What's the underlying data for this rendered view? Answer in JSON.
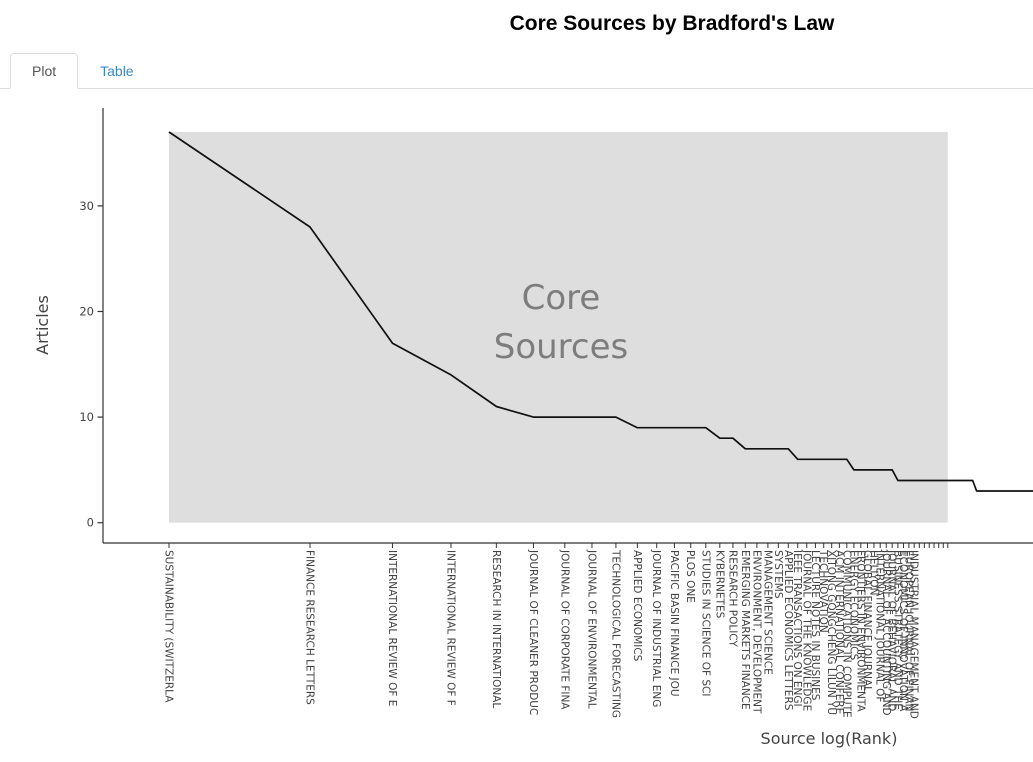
{
  "page": {
    "title": "Core Sources by Bradford's Law"
  },
  "tabs": [
    {
      "label": "Plot",
      "active": true
    },
    {
      "label": "Table",
      "active": false
    }
  ],
  "colors": {
    "accent_link": "#3a87c8",
    "tab_border": "#dddddd",
    "line": "#111111",
    "core_fill": "#dedede",
    "core_label": "#7d7d7d",
    "axis_text": "#444444",
    "axis_line": "#333333"
  },
  "chart_data": {
    "type": "line",
    "title": "Core Sources by Bradford's Law",
    "xlabel": "Source log(Rank)",
    "ylabel": "Articles",
    "x_scale": "log",
    "ylim": [
      0,
      39
    ],
    "yticks": [
      0,
      10,
      20,
      30
    ],
    "grid": false,
    "legend": false,
    "annotation": {
      "text_lines": [
        "Core",
        "Sources"
      ]
    },
    "core_zone": {
      "rank_start": 1,
      "rank_end": 46
    },
    "n_ranks_plotted": 70,
    "sources": [
      {
        "label": "SUSTAINABILITY (SWITZERLA",
        "articles": 37
      },
      {
        "label": "FINANCE RESEARCH LETTERS",
        "articles": 28
      },
      {
        "label": "INTERNATIONAL REVIEW OF E",
        "articles": 17
      },
      {
        "label": "INTERNATIONAL REVIEW OF F",
        "articles": 14
      },
      {
        "label": "RESEARCH IN INTERNATIONAL",
        "articles": 11
      },
      {
        "label": "JOURNAL OF CLEANER PRODUC",
        "articles": 10
      },
      {
        "label": "JOURNAL OF CORPORATE FINA",
        "articles": 10
      },
      {
        "label": "JOURNAL OF ENVIRONMENTAL",
        "articles": 10
      },
      {
        "label": "TECHNOLOGICAL FORECASTING",
        "articles": 10
      },
      {
        "label": "APPLIED ECONOMICS",
        "articles": 9
      },
      {
        "label": "JOURNAL OF INDUSTRIAL ENG",
        "articles": 9
      },
      {
        "label": "PACIFIC BASIN FINANCE JOU",
        "articles": 9
      },
      {
        "label": "PLOS ONE",
        "articles": 9
      },
      {
        "label": "STUDIES IN SCIENCE OF SCI",
        "articles": 9
      },
      {
        "label": "KYBERNETES",
        "articles": 8
      },
      {
        "label": "RESEARCH POLICY",
        "articles": 8
      },
      {
        "label": "EMERGING MARKETS FINANCE",
        "articles": 7
      },
      {
        "label": "ENVIRONMENT, DEVELOPMENT",
        "articles": 7
      },
      {
        "label": "MANAGEMENT SCIENCE",
        "articles": 7
      },
      {
        "label": "SYSTEMS",
        "articles": 7
      },
      {
        "label": "APPLIED ECONOMICS LETTERS",
        "articles": 7
      },
      {
        "label": "IEEE TRANSACTIONS ON ENGI",
        "articles": 6
      },
      {
        "label": "JOURNAL OF THE KNOWLEDGE",
        "articles": 6
      },
      {
        "label": "LECTURE NOTES IN BUSINES",
        "articles": 6
      },
      {
        "label": "TECHNOVATION",
        "articles": 6
      },
      {
        "label": "XITONG GONGCHENG LILUN YU",
        "articles": 6
      },
      {
        "label": "ACM INTERNATIONAL CONFERE",
        "articles": 6
      },
      {
        "label": "COMMUNICATIONS IN COMPUTE",
        "articles": 6
      },
      {
        "label": "ENERGY ECONOMICS",
        "articles": 5
      },
      {
        "label": "FRONTIERS IN ENVIRONMENTA",
        "articles": 5
      },
      {
        "label": "GLOBAL FINANCE JOURNAL",
        "articles": 5
      },
      {
        "label": "HELIYON",
        "articles": 5
      },
      {
        "label": "INTERNATIONAL JOURNAL OF",
        "articles": 5
      },
      {
        "label": "JOURNAL OF ACCOUNTING AND",
        "articles": 5
      },
      {
        "label": "JOURNAL OF BEHAVIORAL AND",
        "articles": 5
      },
      {
        "label": "BUSINESS STRATEGY AND THE",
        "articles": 4
      },
      {
        "label": "ECONOMICS OF INNOVATION A",
        "articles": 4
      },
      {
        "label": "EUROPEAN JOURNAL OF FINAN",
        "articles": 4
      },
      {
        "label": "INDUSTRIAL MANAGEMENT AND",
        "articles": 4
      }
    ],
    "values_by_rank": [
      37,
      28,
      17,
      14,
      11,
      10,
      10,
      10,
      10,
      9,
      9,
      9,
      9,
      9,
      8,
      8,
      7,
      7,
      7,
      7,
      7,
      6,
      6,
      6,
      6,
      6,
      6,
      6,
      5,
      5,
      5,
      5,
      5,
      5,
      5,
      4,
      4,
      4,
      4,
      4,
      4,
      4,
      4,
      4,
      4,
      4,
      4,
      4,
      4,
      4,
      4,
      4,
      3,
      3,
      3,
      3,
      3,
      3,
      3,
      3,
      3,
      3,
      3,
      3,
      3,
      3,
      3,
      3,
      3,
      3
    ]
  }
}
